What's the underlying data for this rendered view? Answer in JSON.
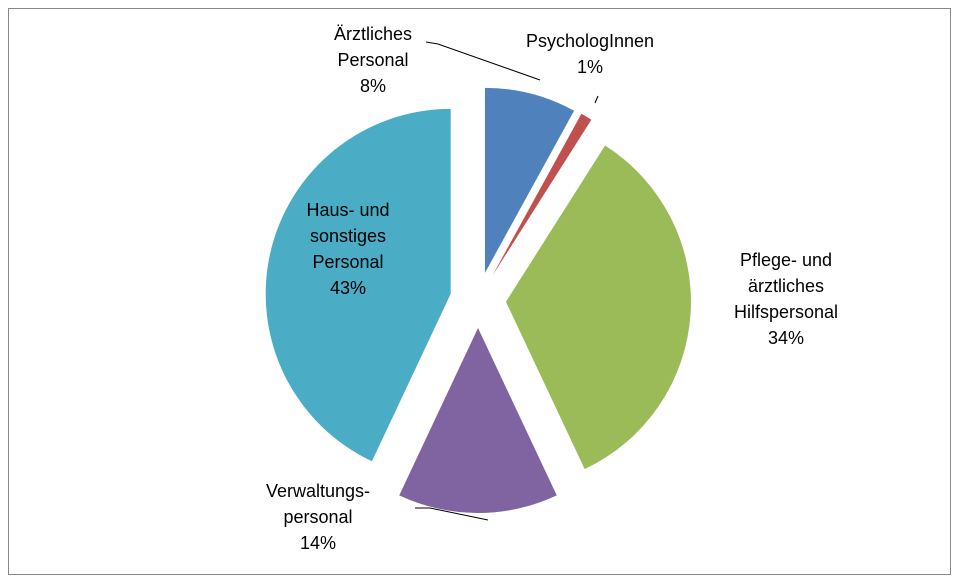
{
  "chart_data": {
    "type": "pie",
    "categories": [
      "Ärztliches\nPersonal",
      "PsychologInnen",
      "Pflege- und\närztliches\nHilfspersonal",
      "Verwaltungs-\npersonal",
      "Haus- und\nsonstiges\nPersonal"
    ],
    "values": [
      8,
      1,
      34,
      14,
      43
    ],
    "value_labels": [
      "8%",
      "1%",
      "34%",
      "14%",
      "43%"
    ],
    "colors": [
      "#4f81bd",
      "#c0504d",
      "#9bbb59",
      "#8064a2",
      "#4bacc6"
    ]
  }
}
